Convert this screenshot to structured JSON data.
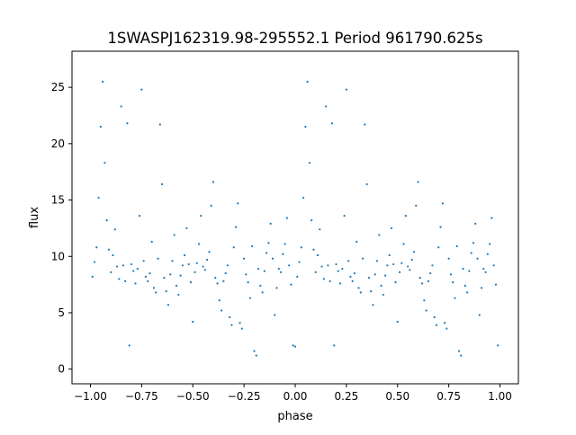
{
  "chart_data": {
    "type": "scatter",
    "title": "1SWASPJ162319.98-295552.1 Period 961790.625s",
    "xlabel": "phase",
    "ylabel": "flux",
    "xlim": [
      -1.09,
      1.09
    ],
    "ylim": [
      -1.3,
      28.2
    ],
    "xticks": [
      -1.0,
      -0.75,
      -0.5,
      -0.25,
      0.0,
      0.25,
      0.5,
      0.75,
      1.0
    ],
    "xtick_labels": [
      "−1.00",
      "−0.75",
      "−0.50",
      "−0.25",
      "0.00",
      "0.25",
      "0.50",
      "0.75",
      "1.00"
    ],
    "yticks": [
      0,
      5,
      10,
      15,
      20,
      25
    ],
    "ytick_labels": [
      "0",
      "5",
      "10",
      "15",
      "20",
      "25"
    ],
    "grid": false,
    "marker_color": "#1f77b4",
    "series": [
      {
        "x": [
          -0.99,
          -0.98,
          -0.97,
          -0.96,
          -0.95,
          -0.94,
          -0.93,
          -0.92,
          -0.91,
          -0.9,
          -0.89,
          -0.88,
          -0.87,
          -0.86,
          -0.85,
          -0.84,
          -0.83,
          -0.82,
          -0.81,
          -0.8,
          -0.79,
          -0.78,
          -0.77,
          -0.76,
          -0.75,
          -0.74,
          -0.73,
          -0.72,
          -0.71,
          -0.7,
          -0.69,
          -0.68,
          -0.67,
          -0.66,
          -0.65,
          -0.64,
          -0.63,
          -0.62,
          -0.61,
          -0.6,
          -0.59,
          -0.58,
          -0.57,
          -0.56,
          -0.55,
          -0.54,
          -0.53,
          -0.52,
          -0.51,
          -0.5,
          -0.49,
          -0.48,
          -0.47,
          -0.46,
          -0.45,
          -0.44,
          -0.43,
          -0.42,
          -0.41,
          -0.4,
          -0.39,
          -0.38,
          -0.37,
          -0.36,
          -0.35,
          -0.34,
          -0.33,
          -0.32,
          -0.31,
          -0.3,
          -0.29,
          -0.28,
          -0.27,
          -0.26,
          -0.25,
          -0.24,
          -0.23,
          -0.22,
          -0.21,
          -0.2,
          -0.19,
          -0.18,
          -0.17,
          -0.16,
          -0.15,
          -0.14,
          -0.13,
          -0.12,
          -0.11,
          -0.1,
          -0.09,
          -0.08,
          -0.07,
          -0.06,
          -0.05,
          -0.04,
          -0.03,
          -0.02,
          -0.01,
          0.0,
          0.01,
          0.02,
          0.03,
          0.04,
          0.05,
          0.06,
          0.07,
          0.08,
          0.09,
          0.1,
          0.11,
          0.12,
          0.13,
          0.14,
          0.15,
          0.16,
          0.17,
          0.18,
          0.19,
          0.2,
          0.21,
          0.22,
          0.23,
          0.24,
          0.25,
          0.26,
          0.27,
          0.28,
          0.29,
          0.3,
          0.31,
          0.32,
          0.33,
          0.34,
          0.35,
          0.36,
          0.37,
          0.38,
          0.39,
          0.4,
          0.41,
          0.42,
          0.43,
          0.44,
          0.45,
          0.46,
          0.47,
          0.48,
          0.49,
          0.5,
          0.51,
          0.52,
          0.53,
          0.54,
          0.55,
          0.56,
          0.57,
          0.58,
          0.59,
          0.6,
          0.61,
          0.62,
          0.63,
          0.64,
          0.65,
          0.66,
          0.67,
          0.68,
          0.69,
          0.7,
          0.71,
          0.72,
          0.73,
          0.74,
          0.75,
          0.76,
          0.77,
          0.78,
          0.79,
          0.8,
          0.81,
          0.82,
          0.83,
          0.84,
          0.85,
          0.86,
          0.87,
          0.88,
          0.89,
          0.9,
          0.91,
          0.92,
          0.93,
          0.94,
          0.95,
          0.96,
          0.97,
          0.98,
          0.99
        ],
        "y": [
          8.2,
          9.5,
          10.8,
          15.2,
          21.5,
          25.5,
          18.3,
          13.2,
          10.6,
          8.6,
          10.1,
          12.4,
          9.1,
          8.0,
          23.3,
          9.2,
          7.8,
          21.8,
          2.1,
          9.3,
          8.7,
          7.6,
          8.9,
          13.6,
          24.8,
          9.6,
          8.2,
          7.8,
          8.5,
          11.3,
          7.2,
          6.8,
          9.8,
          21.7,
          16.4,
          8.1,
          6.9,
          5.7,
          8.4,
          9.6,
          11.9,
          7.4,
          6.6,
          8.3,
          9.2,
          10.1,
          12.5,
          9.3,
          7.7,
          4.2,
          8.6,
          9.4,
          11.1,
          13.6,
          9.1,
          8.8,
          9.7,
          10.4,
          14.5,
          16.6,
          8.1,
          7.6,
          6.1,
          5.2,
          7.8,
          8.5,
          9.2,
          4.6,
          3.9,
          10.8,
          12.6,
          14.7,
          4.1,
          3.6,
          9.8,
          8.4,
          7.7,
          6.3,
          10.9,
          1.6,
          1.2,
          8.9,
          7.4,
          6.8,
          8.7,
          10.3,
          11.2,
          12.9,
          9.8,
          4.8,
          7.2,
          8.9,
          8.6,
          10.2,
          11.1,
          13.4,
          9.2,
          7.5,
          2.1,
          2.0,
          8.2,
          9.5,
          10.8,
          15.2,
          21.5,
          25.5,
          18.3,
          13.2,
          10.6,
          8.6,
          10.1,
          12.4,
          9.1,
          8.0,
          23.3,
          9.2,
          7.8,
          21.8,
          2.1,
          9.3,
          8.7,
          7.6,
          8.9,
          13.6,
          24.8,
          9.6,
          8.2,
          7.8,
          8.5,
          11.3,
          7.2,
          6.8,
          9.8,
          21.7,
          16.4,
          8.1,
          6.9,
          5.7,
          8.4,
          9.6,
          11.9,
          7.4,
          6.6,
          8.3,
          9.2,
          10.1,
          12.5,
          9.3,
          7.7,
          4.2,
          8.6,
          9.4,
          11.1,
          13.6,
          9.1,
          8.8,
          9.7,
          10.4,
          14.5,
          16.6,
          8.1,
          7.6,
          6.1,
          5.2,
          7.8,
          8.5,
          9.2,
          4.6,
          3.9,
          10.8,
          12.6,
          14.7,
          4.1,
          3.6,
          9.8,
          8.4,
          7.7,
          6.3,
          10.9,
          1.6,
          1.2,
          8.9,
          7.4,
          6.8,
          8.7,
          10.3,
          11.2,
          12.9,
          9.8,
          4.8,
          7.2,
          8.9,
          8.6,
          10.2,
          11.1,
          13.4,
          9.2,
          7.5,
          2.1
        ]
      }
    ]
  }
}
